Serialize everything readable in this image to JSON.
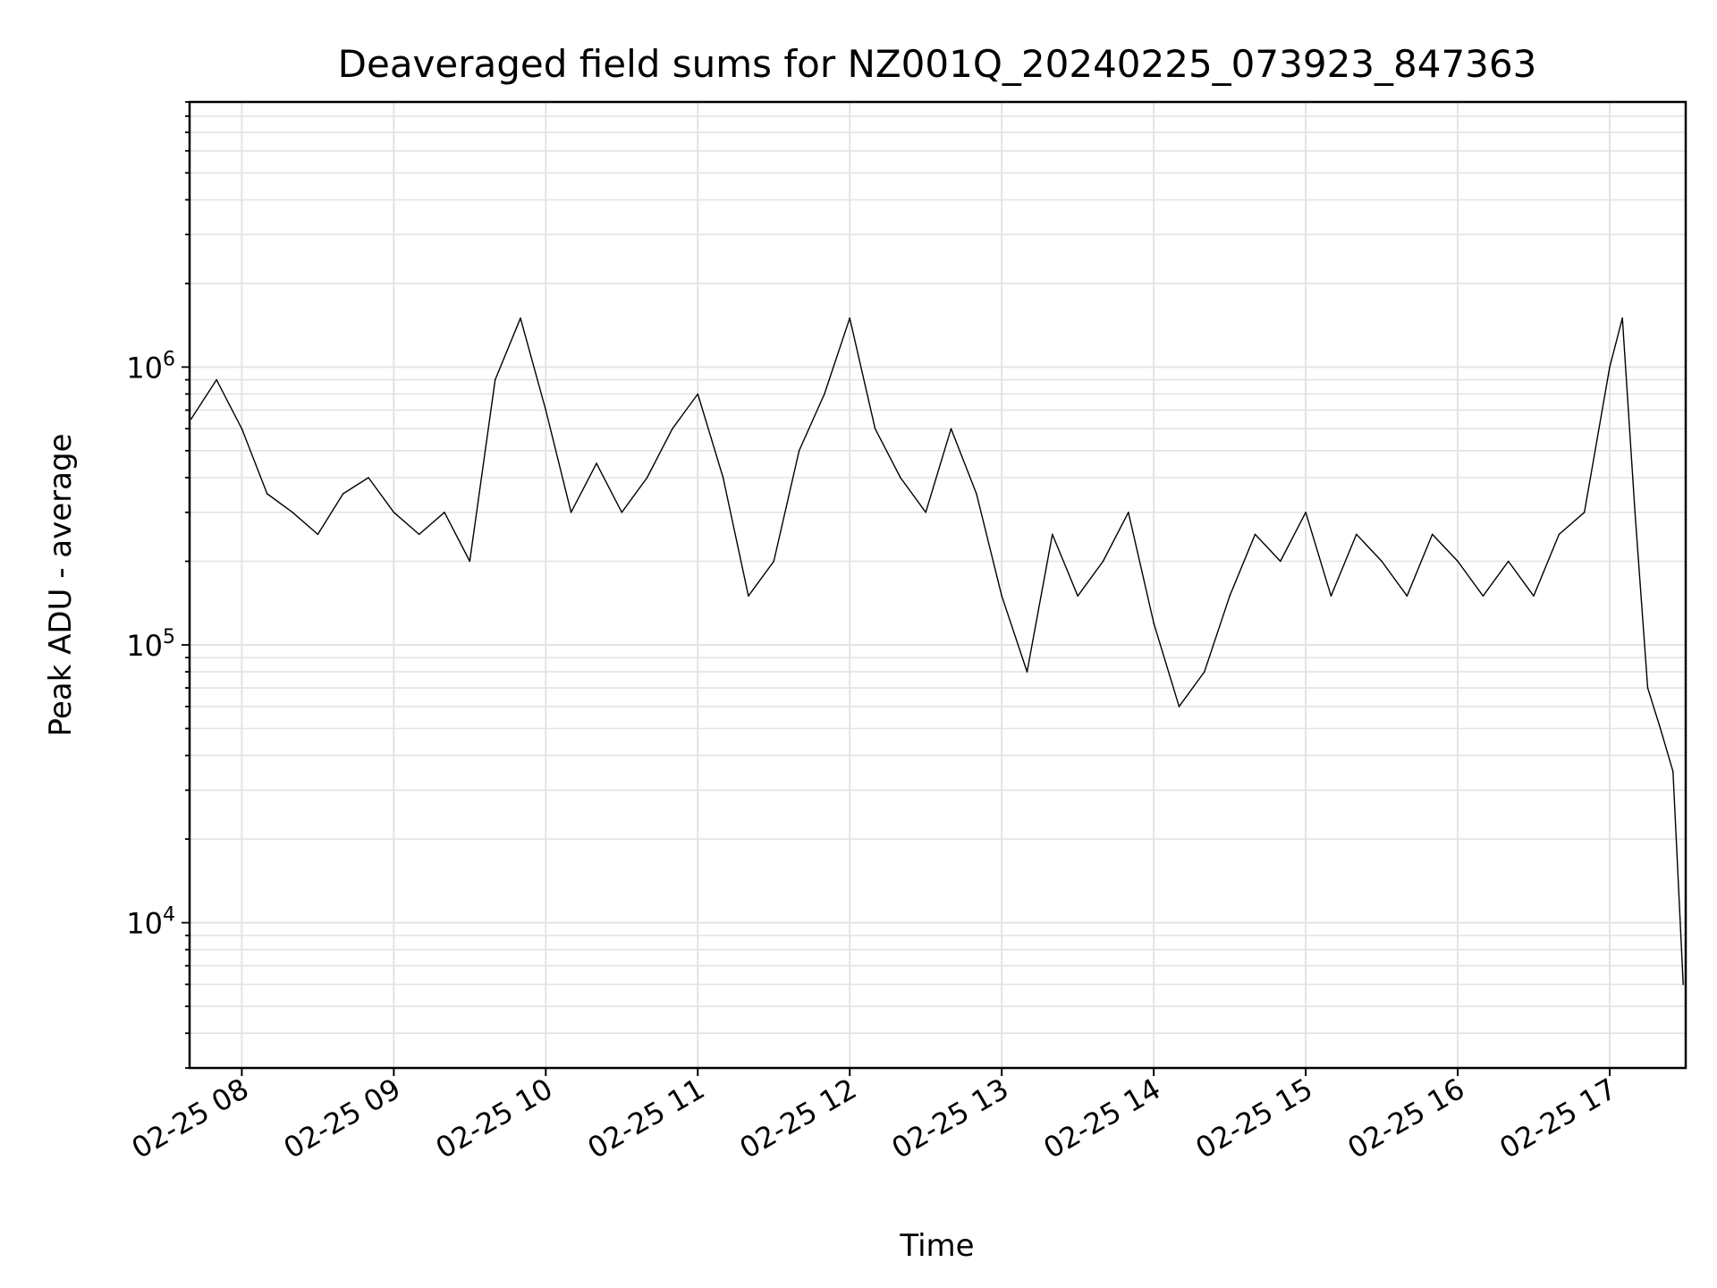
{
  "chart_data": {
    "type": "line",
    "title": "Deaveraged field sums for NZ001Q_20240225_073923_847363",
    "xlabel": "Time",
    "ylabel": "Peak ADU - average",
    "yscale": "log",
    "ylim": [
      3000,
      9000000
    ],
    "xlim": [
      "2024-02-25 07:39:23",
      "2024-02-25 17:30:00"
    ],
    "grid": true,
    "x_ticks": [
      {
        "value": "2024-02-25 08:00",
        "label": "02-25 08"
      },
      {
        "value": "2024-02-25 09:00",
        "label": "02-25 09"
      },
      {
        "value": "2024-02-25 10:00",
        "label": "02-25 10"
      },
      {
        "value": "2024-02-25 11:00",
        "label": "02-25 11"
      },
      {
        "value": "2024-02-25 12:00",
        "label": "02-25 12"
      },
      {
        "value": "2024-02-25 13:00",
        "label": "02-25 13"
      },
      {
        "value": "2024-02-25 14:00",
        "label": "02-25 14"
      },
      {
        "value": "2024-02-25 15:00",
        "label": "02-25 15"
      },
      {
        "value": "2024-02-25 16:00",
        "label": "02-25 16"
      },
      {
        "value": "2024-02-25 17:00",
        "label": "02-25 17"
      }
    ],
    "y_ticks": [
      {
        "value": 10000,
        "base": "10",
        "exp": "4"
      },
      {
        "value": 100000,
        "base": "10",
        "exp": "5"
      },
      {
        "value": 1000000,
        "base": "10",
        "exp": "6"
      }
    ],
    "line_color": "#000000",
    "series": [
      {
        "x": [
          "2024-02-25 07:40",
          "2024-02-25 07:50",
          "2024-02-25 08:00",
          "2024-02-25 08:10",
          "2024-02-25 08:20",
          "2024-02-25 08:30",
          "2024-02-25 08:40",
          "2024-02-25 08:50",
          "2024-02-25 09:00",
          "2024-02-25 09:10",
          "2024-02-25 09:20",
          "2024-02-25 09:30",
          "2024-02-25 09:40",
          "2024-02-25 09:50",
          "2024-02-25 10:00",
          "2024-02-25 10:10",
          "2024-02-25 10:20",
          "2024-02-25 10:30",
          "2024-02-25 10:40",
          "2024-02-25 10:50",
          "2024-02-25 11:00",
          "2024-02-25 11:10",
          "2024-02-25 11:20",
          "2024-02-25 11:30",
          "2024-02-25 11:40",
          "2024-02-25 11:50",
          "2024-02-25 12:00",
          "2024-02-25 12:10",
          "2024-02-25 12:20",
          "2024-02-25 12:30",
          "2024-02-25 12:40",
          "2024-02-25 12:50",
          "2024-02-25 13:00",
          "2024-02-25 13:10",
          "2024-02-25 13:20",
          "2024-02-25 13:30",
          "2024-02-25 13:40",
          "2024-02-25 13:50",
          "2024-02-25 14:00",
          "2024-02-25 14:10",
          "2024-02-25 14:20",
          "2024-02-25 14:30",
          "2024-02-25 14:40",
          "2024-02-25 14:50",
          "2024-02-25 15:00",
          "2024-02-25 15:10",
          "2024-02-25 15:20",
          "2024-02-25 15:30",
          "2024-02-25 15:40",
          "2024-02-25 15:50",
          "2024-02-25 16:00",
          "2024-02-25 16:10",
          "2024-02-25 16:20",
          "2024-02-25 16:30",
          "2024-02-25 16:40",
          "2024-02-25 16:50",
          "2024-02-25 17:00",
          "2024-02-25 17:05",
          "2024-02-25 17:10",
          "2024-02-25 17:15",
          "2024-02-25 17:20",
          "2024-02-25 17:25",
          "2024-02-25 17:29"
        ],
        "y": [
          650000,
          900000,
          600000,
          350000,
          300000,
          250000,
          350000,
          400000,
          300000,
          250000,
          300000,
          200000,
          900000,
          1500000,
          700000,
          300000,
          450000,
          300000,
          400000,
          600000,
          800000,
          400000,
          150000,
          200000,
          500000,
          800000,
          1500000,
          600000,
          400000,
          300000,
          600000,
          350000,
          150000,
          80000,
          250000,
          150000,
          200000,
          300000,
          120000,
          60000,
          80000,
          150000,
          250000,
          200000,
          300000,
          150000,
          250000,
          200000,
          150000,
          250000,
          200000,
          150000,
          200000,
          150000,
          250000,
          300000,
          1000000,
          1500000,
          300000,
          70000,
          50000,
          35000,
          6000
        ]
      }
    ]
  }
}
